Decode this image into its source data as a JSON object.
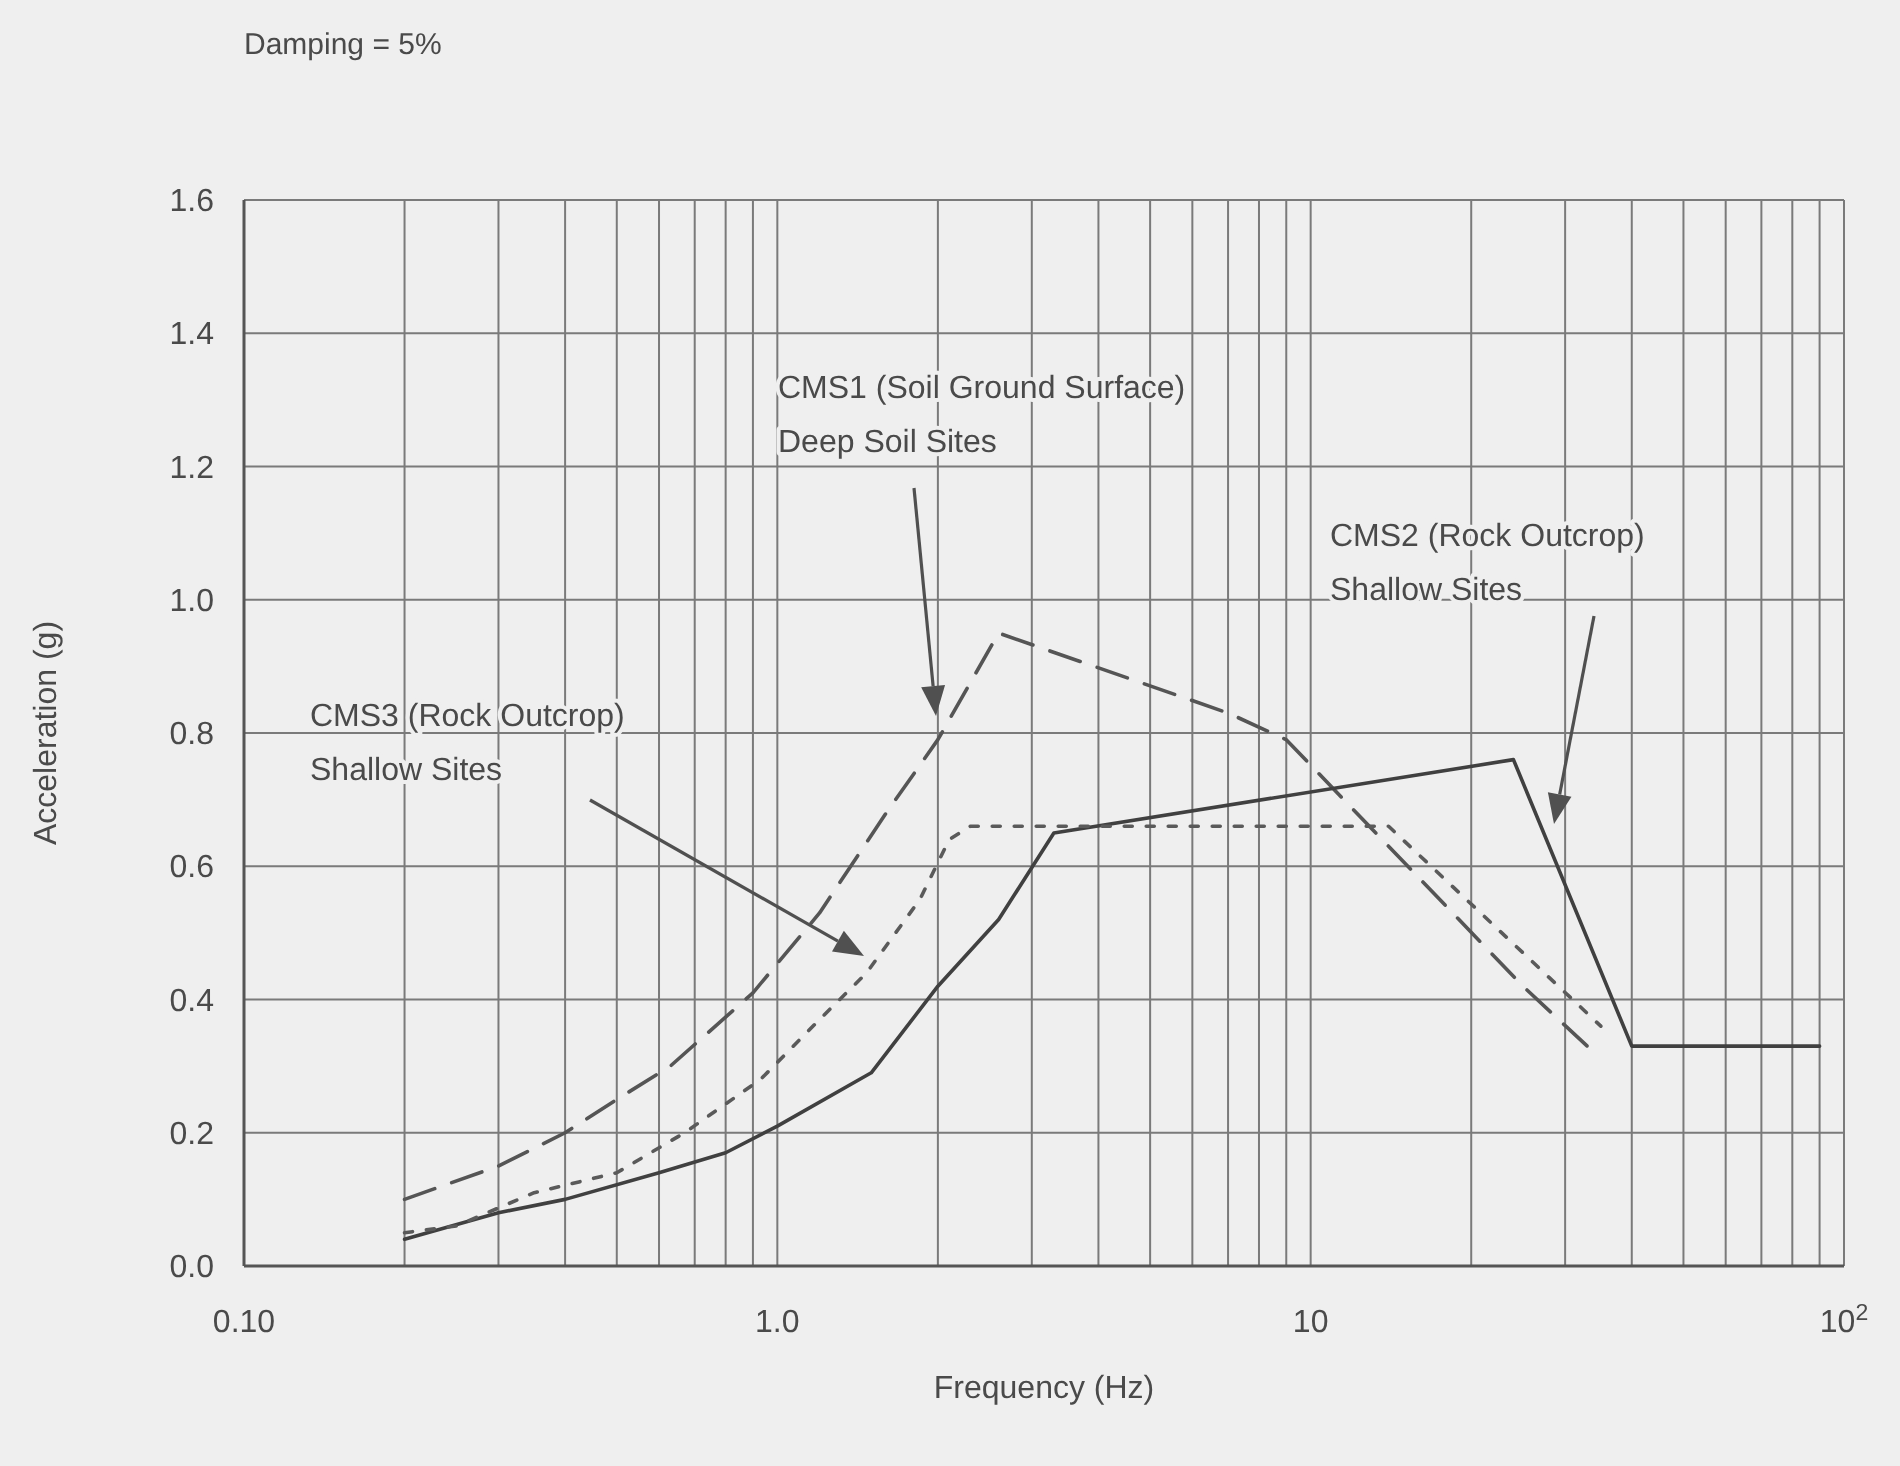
{
  "chart_data": {
    "type": "line",
    "title": "Damping = 5%",
    "xlabel": "Frequency (Hz)",
    "ylabel": "Acceleration (g)",
    "log": "x",
    "grid": true,
    "xlim": [
      0.1,
      100
    ],
    "xticks": [
      {
        "value": 0.1,
        "label": "0.10"
      },
      {
        "value": 0.2,
        "label": null
      },
      {
        "value": 0.3,
        "label": null
      },
      {
        "value": 0.4,
        "label": null
      },
      {
        "value": 0.5,
        "label": null
      },
      {
        "value": 0.6,
        "label": null
      },
      {
        "value": 0.7,
        "label": null
      },
      {
        "value": 0.8,
        "label": null
      },
      {
        "value": 0.9,
        "label": null
      },
      {
        "value": 1,
        "label": "1.0"
      },
      {
        "value": 2,
        "label": null
      },
      {
        "value": 3,
        "label": null
      },
      {
        "value": 4,
        "label": null
      },
      {
        "value": 5,
        "label": null
      },
      {
        "value": 6,
        "label": null
      },
      {
        "value": 7,
        "label": null
      },
      {
        "value": 8,
        "label": null
      },
      {
        "value": 9,
        "label": null
      },
      10,
      {
        "value": 20,
        "label": null
      },
      {
        "value": 30,
        "label": null
      },
      {
        "value": 40,
        "label": null
      },
      {
        "value": 50,
        "label": null
      },
      {
        "value": 60,
        "label": null
      },
      {
        "value": 70,
        "label": null
      },
      {
        "value": 80,
        "label": null
      },
      {
        "value": 90,
        "label": null
      },
      {
        "value": 100,
        "label": "10$^{2}$"
      }
    ],
    "ylim": [
      0,
      1.6
    ],
    "yticks": [
      {
        "value": 0,
        "label": "0.0"
      },
      0.2,
      0.4,
      0.6,
      0.8,
      {
        "value": 1,
        "label": "1.0"
      },
      1.2,
      1.4,
      1.6
    ],
    "series": [
      {
        "color": "#555555",
        "line_style": "dashed",
        "x": [
          0.2,
          0.3,
          0.4,
          0.5,
          0.63,
          0.9,
          1.2,
          1.6,
          2,
          2.6,
          7,
          9,
          25,
          33
        ],
        "values": [
          0.1,
          0.15,
          0.2,
          0.25,
          0.3,
          0.41,
          0.53,
          0.68,
          0.79,
          0.95,
          0.83,
          0.79,
          0.42,
          0.33
        ]
      },
      {
        "color": "#404040",
        "line_style": "solid",
        "x": [
          0.2,
          0.3,
          0.4,
          0.6,
          0.8,
          1,
          1.5,
          2,
          2.6,
          3.3,
          24,
          40,
          90
        ],
        "values": [
          0.04,
          0.08,
          0.1,
          0.14,
          0.17,
          0.21,
          0.29,
          0.42,
          0.52,
          0.65,
          0.76,
          0.33,
          0.33
        ]
      },
      {
        "color": "#5a5a5a",
        "line_style": "dotted",
        "x": [
          0.2,
          0.25,
          0.35,
          0.5,
          0.67,
          0.93,
          1.2,
          1.47,
          1.85,
          2.1,
          2.3,
          14,
          35
        ],
        "values": [
          0.05,
          0.06,
          0.11,
          0.14,
          0.2,
          0.28,
          0.37,
          0.44,
          0.55,
          0.64,
          0.66,
          0.66,
          0.36
        ]
      }
    ],
    "annotations": [
      "CMS1 (Soil Ground Surface)\nDeep Soil Sites",
      "CMS2 (Rock Outcrop)\nShallow Sites",
      "CMS3 (Rock Outcrop)\nShallow Sites"
    ]
  }
}
